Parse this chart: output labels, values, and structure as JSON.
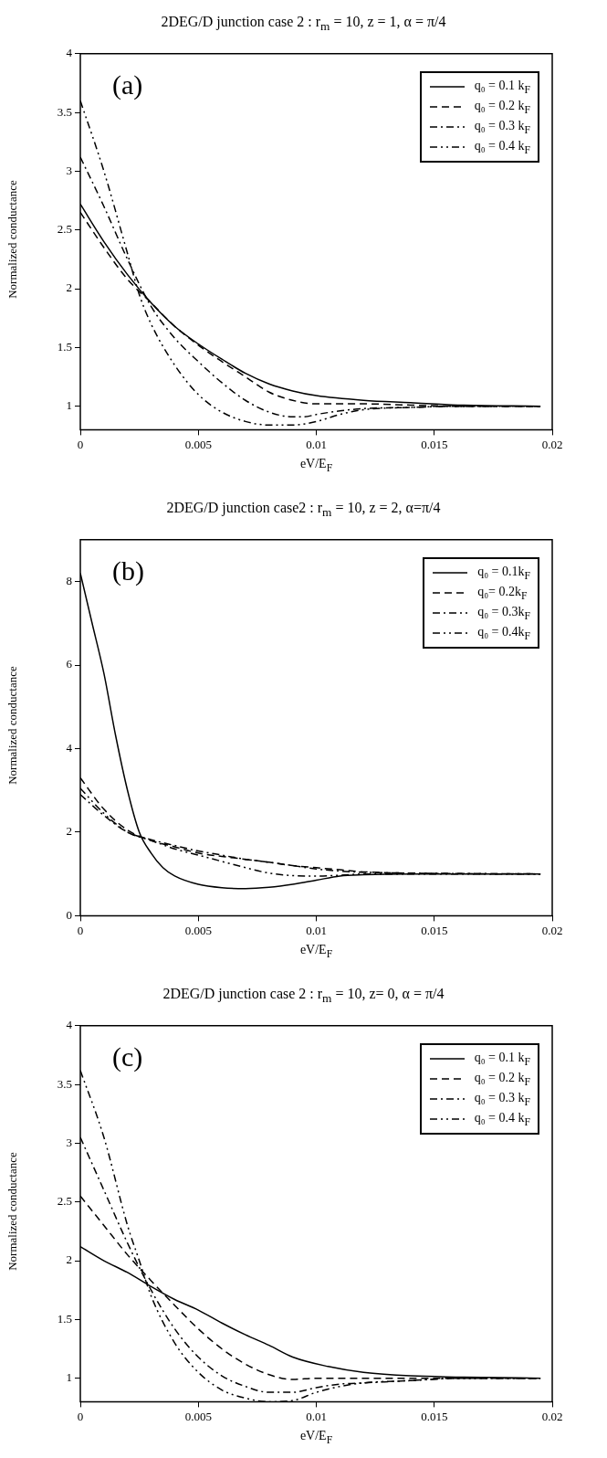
{
  "chart_data": [
    {
      "type": "line",
      "title": "2DEG/D junction case 2 : r$_{m}$ = 10, z = 1, α = π/4",
      "xlabel": "eV/E$_{F}$",
      "ylabel": "Normalized conductance",
      "annotations": [
        "(a)"
      ],
      "xlim": [
        0,
        0.02
      ],
      "xticks": [
        0,
        0.005,
        0.01,
        0.015,
        0.02
      ],
      "ylim": [
        0.8,
        4
      ],
      "yticks": [
        1,
        1.5,
        2,
        2.5,
        3,
        3.5,
        4
      ],
      "grid": false,
      "legend": "top right",
      "marker": "none",
      "series": [
        {
          "name": "q₀ = 0.1 k$_{F}$",
          "color": "#000000",
          "line_style": "solid",
          "x": [
            0,
            0.001,
            0.002,
            0.003,
            0.004,
            0.005,
            0.006,
            0.007,
            0.008,
            0.009,
            0.01,
            0.012,
            0.014,
            0.016,
            0.0195
          ],
          "values": [
            2.72,
            2.4,
            2.12,
            1.88,
            1.68,
            1.53,
            1.4,
            1.28,
            1.19,
            1.13,
            1.09,
            1.05,
            1.03,
            1.01,
            1.0
          ]
        },
        {
          "name": "q₀ = 0.2 k$_{F}$",
          "color": "#000000",
          "line_style": "dashed",
          "x": [
            0,
            0.001,
            0.002,
            0.003,
            0.004,
            0.005,
            0.006,
            0.007,
            0.008,
            0.009,
            0.01,
            0.012,
            0.014,
            0.016,
            0.0195
          ],
          "values": [
            2.65,
            2.35,
            2.08,
            1.88,
            1.68,
            1.52,
            1.38,
            1.25,
            1.12,
            1.05,
            1.02,
            1.02,
            1.01,
            1.0,
            1.0
          ]
        },
        {
          "name": "q₀ = 0.3 k$_{F}$",
          "color": "#000000",
          "line_style": "dashdot",
          "x": [
            0,
            0.001,
            0.002,
            0.003,
            0.004,
            0.005,
            0.006,
            0.007,
            0.008,
            0.009,
            0.0095,
            0.01,
            0.011,
            0.012,
            0.014,
            0.016,
            0.0195
          ],
          "values": [
            3.12,
            2.7,
            2.25,
            1.85,
            1.58,
            1.38,
            1.2,
            1.05,
            0.95,
            0.91,
            0.91,
            0.93,
            0.96,
            0.98,
            0.99,
            1.0,
            1.0
          ]
        },
        {
          "name": "q₀ = 0.4 k$_{F}$",
          "color": "#000000",
          "line_style": "dashdotdot",
          "x": [
            0,
            0.001,
            0.002,
            0.0025,
            0.003,
            0.004,
            0.005,
            0.006,
            0.007,
            0.008,
            0.009,
            0.01,
            0.011,
            0.012,
            0.014,
            0.016,
            0.0195
          ],
          "values": [
            3.6,
            3.0,
            2.3,
            1.95,
            1.7,
            1.35,
            1.1,
            0.95,
            0.87,
            0.84,
            0.84,
            0.87,
            0.93,
            0.97,
            0.99,
            1.0,
            1.0
          ]
        }
      ]
    },
    {
      "type": "line",
      "title": "2DEG/D junction case2 : r$_{m}$ = 10, z = 2, α=π/4",
      "xlabel": "eV/E$_{F}$",
      "ylabel": "Normalized conductance",
      "annotations": [
        "(b)"
      ],
      "xlim": [
        0,
        0.02
      ],
      "xticks": [
        0,
        0.005,
        0.01,
        0.015,
        0.02
      ],
      "ylim": [
        0,
        9
      ],
      "yticks": [
        0,
        2,
        4,
        6,
        8
      ],
      "grid": false,
      "legend": "top right",
      "marker": "none",
      "series": [
        {
          "name": "q₀ = 0.1k$_{F}$",
          "color": "#000000",
          "line_style": "solid",
          "x": [
            0,
            0.0005,
            0.001,
            0.0015,
            0.002,
            0.0025,
            0.003,
            0.0035,
            0.004,
            0.005,
            0.006,
            0.007,
            0.008,
            0.009,
            0.01,
            0.011,
            0.012,
            0.014,
            0.0195
          ],
          "values": [
            8.2,
            7,
            5.8,
            4.3,
            3.0,
            2.0,
            1.5,
            1.15,
            0.95,
            0.75,
            0.67,
            0.65,
            0.68,
            0.75,
            0.85,
            0.95,
            0.98,
            1.0,
            1.0
          ]
        },
        {
          "name": "q₀= 0.2k$_{F}$",
          "color": "#000000",
          "line_style": "dashed",
          "x": [
            0,
            0.001,
            0.002,
            0.003,
            0.004,
            0.005,
            0.006,
            0.007,
            0.008,
            0.009,
            0.01,
            0.011,
            0.012,
            0.014,
            0.0195
          ],
          "values": [
            3.3,
            2.55,
            2.05,
            1.8,
            1.65,
            1.5,
            1.42,
            1.35,
            1.28,
            1.2,
            1.15,
            1.1,
            1.05,
            1.02,
            1.0
          ]
        },
        {
          "name": "q₀ = 0.3k$_{F}$",
          "color": "#000000",
          "line_style": "dashdot",
          "x": [
            0,
            0.001,
            0.002,
            0.003,
            0.004,
            0.005,
            0.006,
            0.007,
            0.008,
            0.009,
            0.01,
            0.011,
            0.012,
            0.014,
            0.0195
          ],
          "values": [
            2.9,
            2.4,
            2.0,
            1.82,
            1.68,
            1.55,
            1.45,
            1.35,
            1.28,
            1.2,
            1.12,
            1.07,
            1.04,
            1.02,
            1.0
          ]
        },
        {
          "name": "q₀ = 0.4k$_{F}$",
          "color": "#000000",
          "line_style": "dashdotdot",
          "x": [
            0,
            0.001,
            0.002,
            0.003,
            0.004,
            0.005,
            0.006,
            0.007,
            0.008,
            0.009,
            0.01,
            0.011,
            0.012,
            0.014,
            0.0195
          ],
          "values": [
            3.05,
            2.45,
            2.0,
            1.8,
            1.6,
            1.45,
            1.3,
            1.15,
            1.02,
            0.96,
            0.95,
            0.97,
            1.0,
            1.0,
            1.0
          ]
        }
      ]
    },
    {
      "type": "line",
      "title": "2DEG/D junction case 2 : r$_{m}$ = 10, z= 0, α = π/4",
      "xlabel": "eV/E$_{F}$",
      "ylabel": "Normalized conductance",
      "annotations": [
        "(c)"
      ],
      "xlim": [
        0,
        0.02
      ],
      "xticks": [
        0,
        0.005,
        0.01,
        0.015,
        0.02
      ],
      "ylim": [
        0.8,
        4
      ],
      "yticks": [
        1,
        1.5,
        2,
        2.5,
        3,
        3.5,
        4
      ],
      "grid": false,
      "legend": "top right",
      "marker": "none",
      "series": [
        {
          "name": "q₀ = 0.1 k$_{F}$",
          "color": "#000000",
          "line_style": "solid",
          "x": [
            0,
            0.001,
            0.002,
            0.003,
            0.004,
            0.005,
            0.006,
            0.007,
            0.008,
            0.009,
            0.0105,
            0.012,
            0.014,
            0.016,
            0.0195
          ],
          "values": [
            2.12,
            2.0,
            1.9,
            1.78,
            1.67,
            1.58,
            1.47,
            1.37,
            1.28,
            1.18,
            1.1,
            1.05,
            1.02,
            1.01,
            1.0
          ]
        },
        {
          "name": "q₀ = 0.2 k$_{F}$",
          "color": "#000000",
          "line_style": "dashed",
          "x": [
            0,
            0.001,
            0.002,
            0.003,
            0.004,
            0.005,
            0.006,
            0.007,
            0.008,
            0.009,
            0.01,
            0.012,
            0.014,
            0.0195
          ],
          "values": [
            2.55,
            2.3,
            2.05,
            1.83,
            1.62,
            1.42,
            1.25,
            1.12,
            1.03,
            0.99,
            1.0,
            1.0,
            1.0,
            1.0
          ]
        },
        {
          "name": "q₀ = 0.3 k$_{F}$",
          "color": "#000000",
          "line_style": "dashdot",
          "x": [
            0,
            0.001,
            0.002,
            0.003,
            0.004,
            0.005,
            0.006,
            0.007,
            0.008,
            0.009,
            0.01,
            0.011,
            0.012,
            0.014,
            0.016,
            0.0195
          ],
          "values": [
            3.05,
            2.6,
            2.15,
            1.75,
            1.42,
            1.18,
            1.02,
            0.93,
            0.88,
            0.88,
            0.92,
            0.95,
            0.96,
            0.98,
            1.0,
            1.0
          ]
        },
        {
          "name": "q₀ = 0.4 k$_{F}$",
          "color": "#000000",
          "line_style": "dashdotdot",
          "x": [
            0,
            0.001,
            0.002,
            0.0025,
            0.003,
            0.004,
            0.005,
            0.006,
            0.007,
            0.008,
            0.009,
            0.01,
            0.011,
            0.012,
            0.014,
            0.016,
            0.0195
          ],
          "values": [
            3.62,
            3.05,
            2.3,
            2.0,
            1.7,
            1.3,
            1.05,
            0.9,
            0.83,
            0.8,
            0.81,
            0.88,
            0.93,
            0.96,
            0.98,
            1.0,
            1.0
          ]
        }
      ]
    }
  ]
}
